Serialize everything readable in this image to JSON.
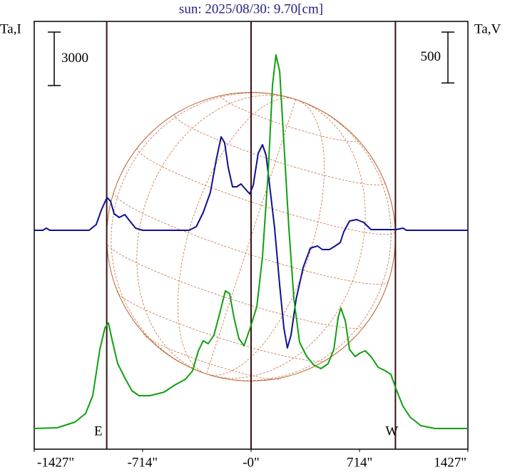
{
  "chart_data": {
    "type": "line",
    "title": "sun: 2025/08/30: 9.70[cm]",
    "ylabel": "Ta,I",
    "y2label": "Ta,V",
    "xlim": [
      -1427,
      1427
    ],
    "xticks": [
      {
        "value": -1427,
        "label": "-1427\""
      },
      {
        "value": -714,
        "label": "-714\""
      },
      {
        "value": 0,
        "label": "-0\""
      },
      {
        "value": 714,
        "label": "714\""
      },
      {
        "value": 1427,
        "label": "1427\""
      }
    ],
    "ylim": [
      -12000,
      12000
    ],
    "y2lim": [
      -200,
      4000
    ],
    "disk_radius": 950,
    "markers": [
      {
        "x": -950,
        "label": "E"
      },
      {
        "x": 0
      },
      {
        "x": 950,
        "label": "W"
      }
    ],
    "scale_bars": [
      {
        "value": 3000,
        "axis": "y"
      },
      {
        "value": 500,
        "axis": "y2"
      }
    ],
    "series": [
      {
        "name": "I",
        "color": "#101090",
        "axis": "y",
        "x": [
          -1427,
          -1371,
          -1347,
          -1324,
          -1066,
          -1019,
          -986,
          -948,
          -925,
          -901,
          -868,
          -831,
          -798,
          -760,
          -714,
          -408,
          -361,
          -315,
          -268,
          -230,
          -197,
          -174,
          -150,
          -122,
          -94,
          -66,
          -38,
          -9,
          14,
          47,
          75,
          99,
          122,
          155,
          188,
          216,
          239,
          263,
          296,
          343,
          390,
          437,
          469,
          516,
          554,
          587,
          610,
          648,
          695,
          742,
          789,
          836,
          953,
          1000,
          1023,
          1427
        ],
        "values": [
          280,
          280,
          400,
          280,
          280,
          600,
          1400,
          2120,
          1920,
          1200,
          1000,
          1160,
          800,
          400,
          280,
          280,
          480,
          1280,
          2400,
          4200,
          5520,
          5200,
          3800,
          2720,
          2720,
          2880,
          2600,
          2320,
          2800,
          4600,
          5080,
          4480,
          2800,
          400,
          -2800,
          -5200,
          -6320,
          -5600,
          -3600,
          -1800,
          -720,
          -600,
          -800,
          -800,
          -600,
          -400,
          200,
          800,
          880,
          720,
          320,
          320,
          320,
          400,
          280,
          280
        ]
      },
      {
        "name": "V",
        "color": "#10a010",
        "axis": "y2",
        "x": [
          -1427,
          -1277,
          -1159,
          -1089,
          -1042,
          -995,
          -962,
          -939,
          -911,
          -878,
          -831,
          -784,
          -737,
          -667,
          -573,
          -502,
          -432,
          -385,
          -347,
          -315,
          -282,
          -244,
          -207,
          -169,
          -141,
          -113,
          -80,
          -47,
          -9,
          38,
          75,
          113,
          141,
          164,
          188,
          216,
          249,
          282,
          319,
          366,
          413,
          460,
          507,
          545,
          573,
          591,
          620,
          648,
          685,
          718,
          751,
          789,
          836,
          883,
          920,
          953,
          1000,
          1047,
          1117,
          1211,
          1427
        ],
        "values": [
          3,
          10,
          66,
          150,
          325,
          780,
          990,
          1039,
          850,
          640,
          500,
          374,
          325,
          325,
          360,
          430,
          486,
          570,
          766,
          864,
          836,
          920,
          1130,
          1354,
          1326,
          1095,
          885,
          815,
          976,
          1200,
          1690,
          2530,
          3370,
          3671,
          3510,
          2810,
          1970,
          1270,
          850,
          710,
          626,
          591,
          640,
          780,
          1095,
          1186,
          1060,
          780,
          710,
          745,
          766,
          710,
          605,
          570,
          535,
          395,
          220,
          115,
          31,
          3,
          3
        ]
      }
    ]
  }
}
